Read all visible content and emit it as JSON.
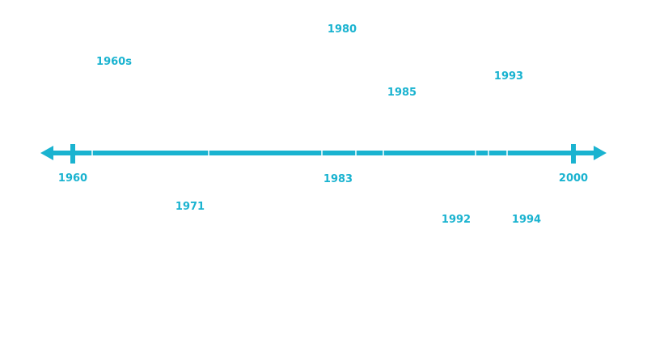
{
  "colors": {
    "accent": "#1ab3d0",
    "background": "#ffffff",
    "tick_minor": "#ffffff"
  },
  "timeline": {
    "start_label": "1960",
    "end_label": "2000",
    "events_above": [
      {
        "id": "e-1960s",
        "label": "1960s"
      },
      {
        "id": "e-1980",
        "label": "1980"
      },
      {
        "id": "e-1985",
        "label": "1985"
      },
      {
        "id": "e-1993",
        "label": "1993"
      }
    ],
    "events_below": [
      {
        "id": "e-1971",
        "label": "1971"
      },
      {
        "id": "e-1983",
        "label": "1983"
      },
      {
        "id": "e-1992",
        "label": "1992"
      },
      {
        "id": "e-1994",
        "label": "1994"
      }
    ]
  }
}
